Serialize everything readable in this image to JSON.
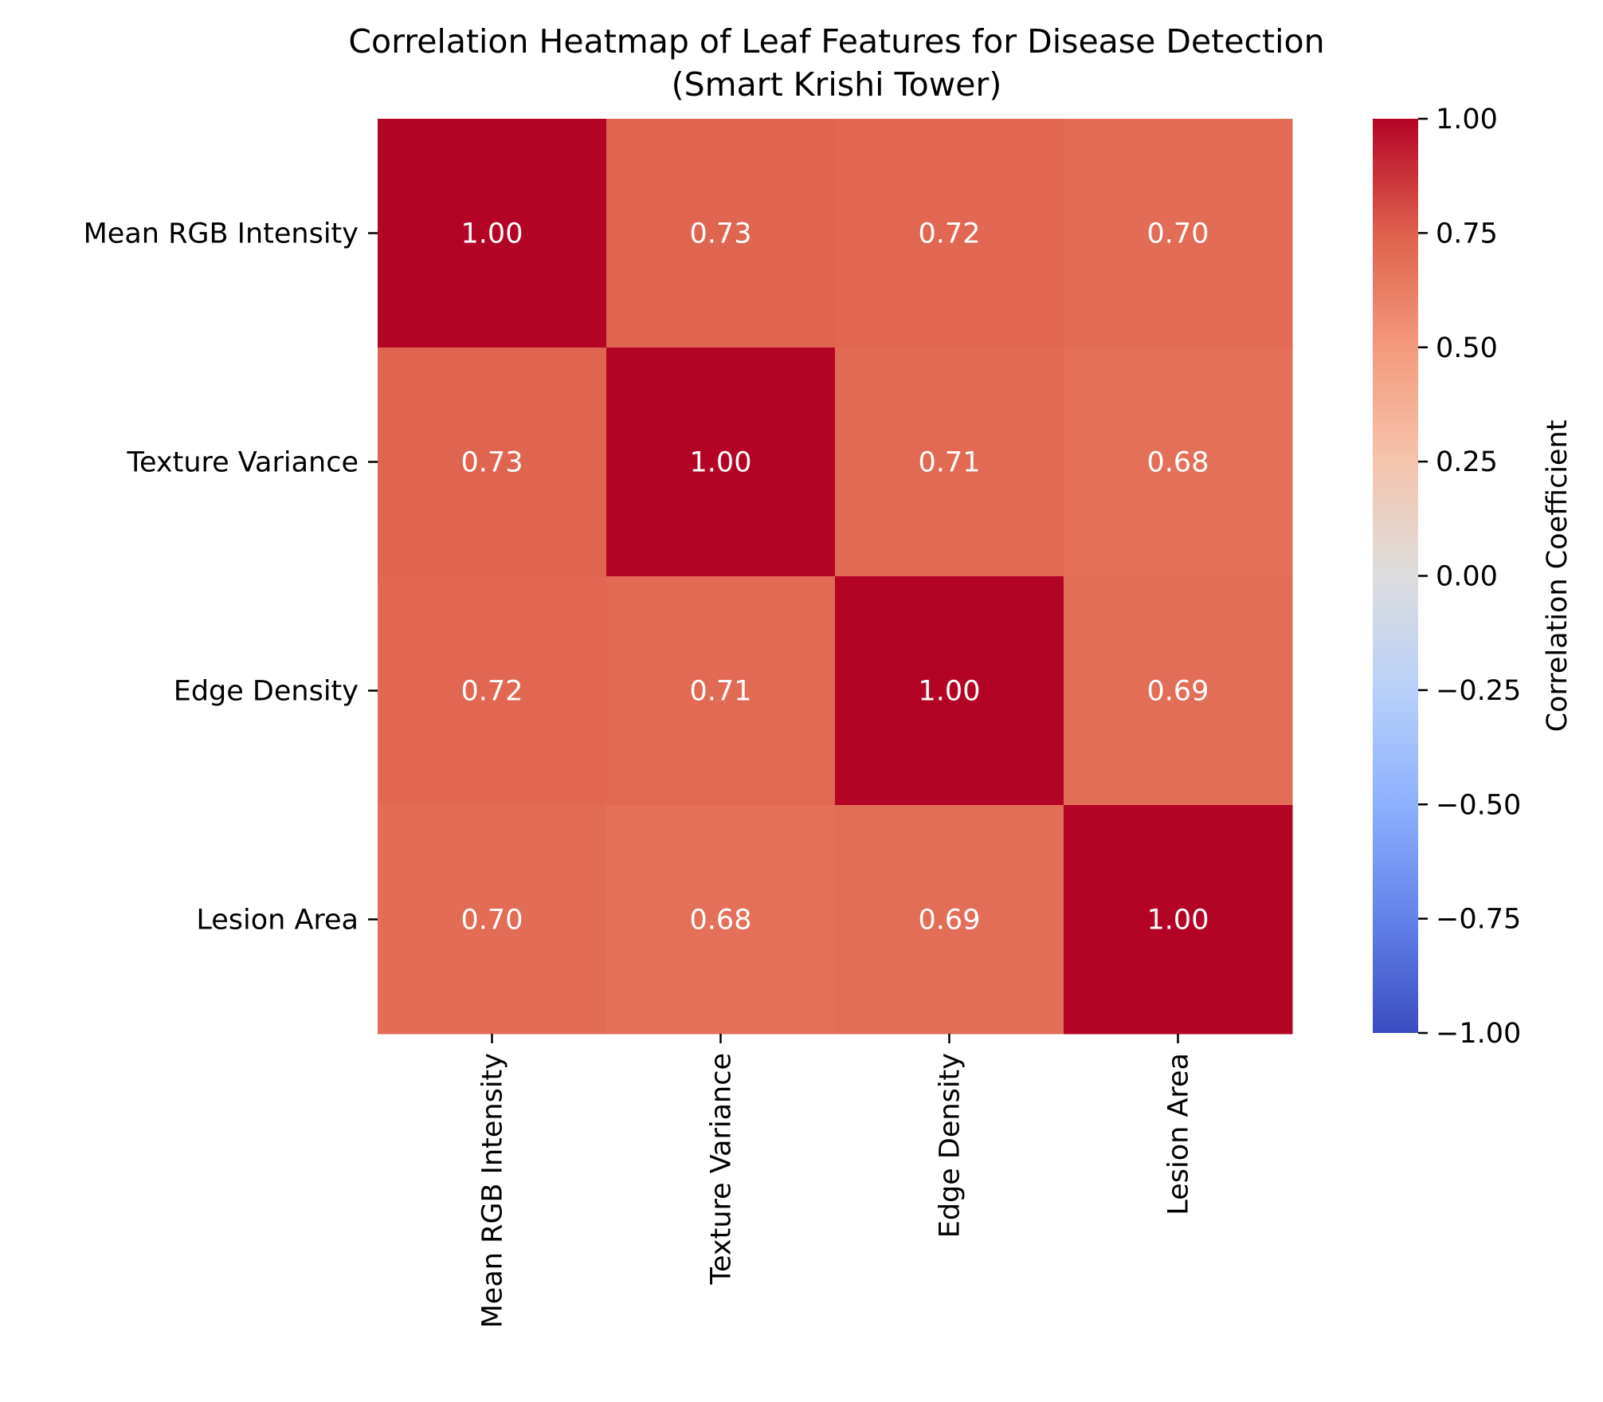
{
  "chart_data": {
    "type": "heatmap",
    "title": "Correlation Heatmap of Leaf Features for Disease Detection",
    "subtitle": "(Smart Krishi Tower)",
    "row_labels": [
      "Mean RGB Intensity",
      "Texture Variance",
      "Edge Density",
      "Lesion Area"
    ],
    "col_labels": [
      "Mean RGB Intensity",
      "Texture Variance",
      "Edge Density",
      "Lesion Area"
    ],
    "values": [
      [
        1.0,
        0.73,
        0.72,
        0.7
      ],
      [
        0.73,
        1.0,
        0.71,
        0.68
      ],
      [
        0.72,
        0.71,
        1.0,
        0.69
      ],
      [
        0.7,
        0.68,
        0.69,
        1.0
      ]
    ],
    "value_format": "2 decimals",
    "colormap": "coolwarm",
    "vmin": -1.0,
    "vmax": 1.0,
    "colorbar": {
      "label": "Correlation Coefficient",
      "ticks": [
        1.0,
        0.75,
        0.5,
        0.25,
        0.0,
        -0.25,
        -0.5,
        -0.75,
        -1.0
      ],
      "tick_labels": [
        "1.00",
        "0.75",
        "0.50",
        "0.25",
        "0.00",
        "−0.25",
        "−0.50",
        "−0.75",
        "−1.00"
      ]
    },
    "annotation_color": "#ffffff"
  }
}
